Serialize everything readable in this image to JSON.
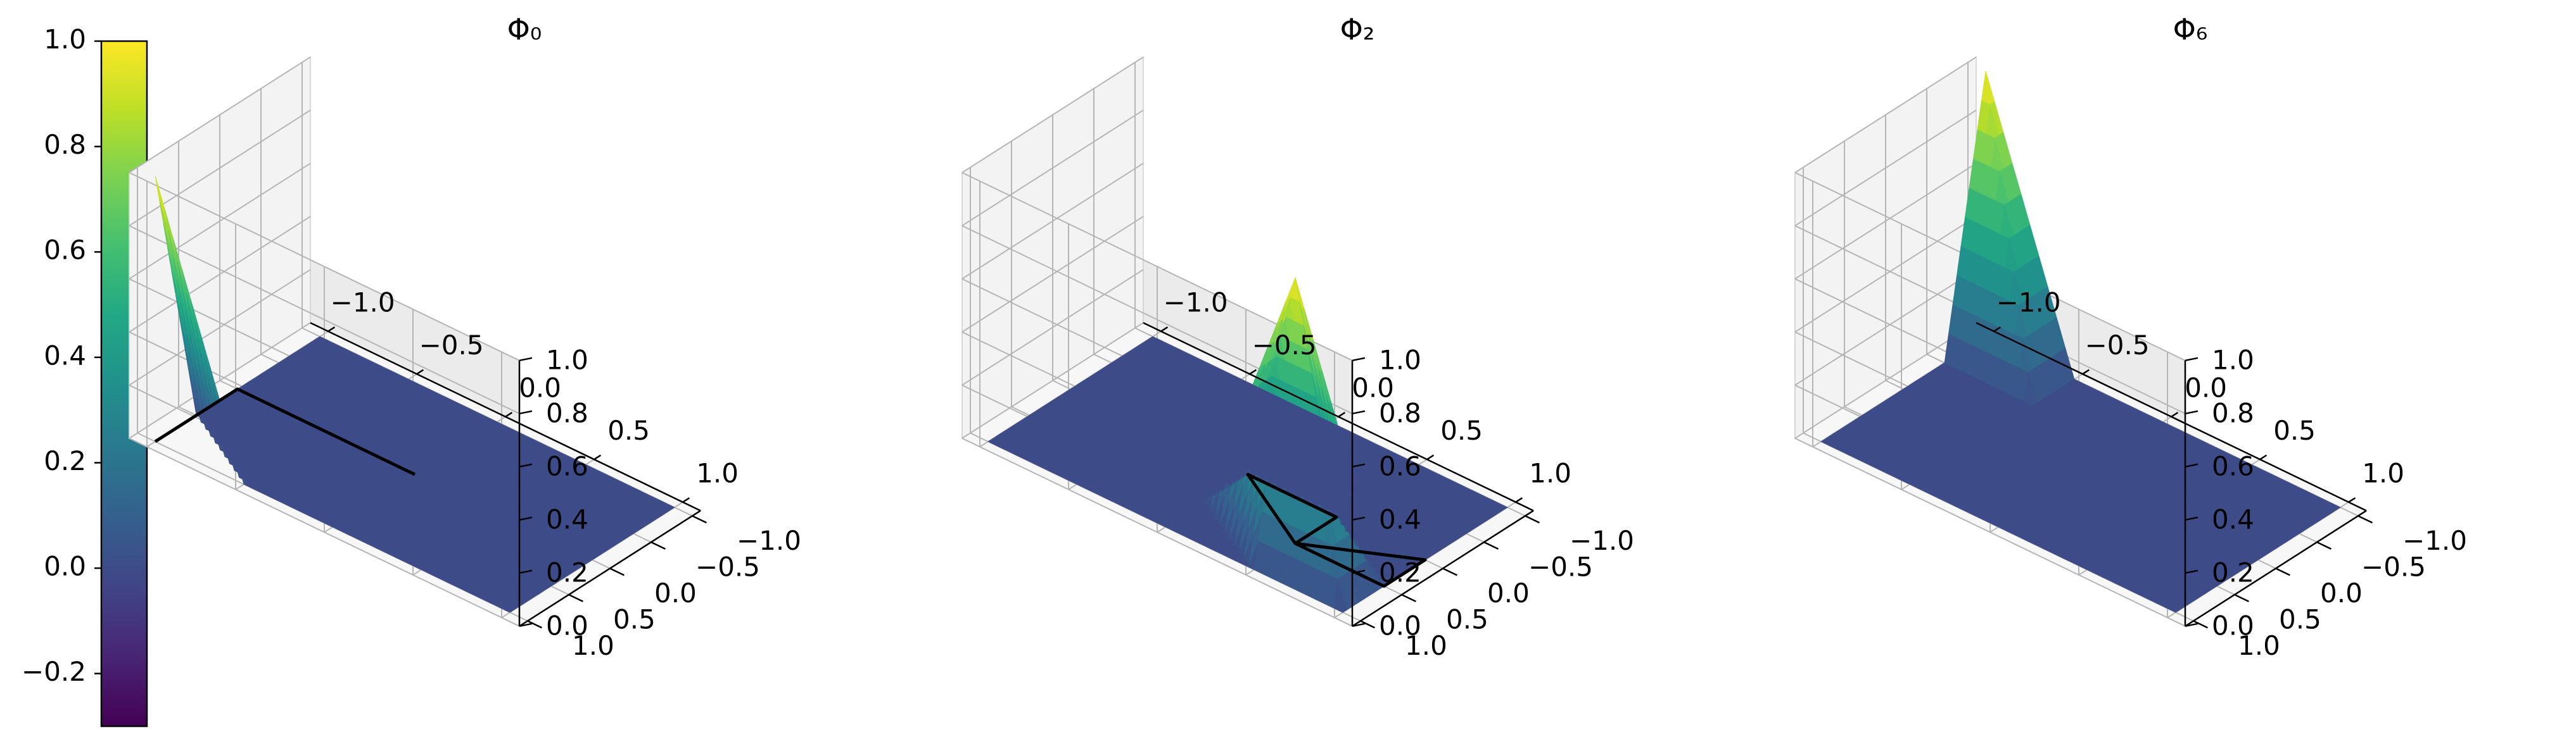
{
  "chart_data": {
    "type": "surface3d",
    "colorbar": {
      "colormap": "viridis",
      "vmin": -0.3,
      "vmax": 1.0,
      "ticks": [
        "1.0",
        "0.8",
        "0.6",
        "0.4",
        "0.2",
        "0.0",
        "−0.2"
      ],
      "tick_values": [
        1.0,
        0.8,
        0.6,
        0.4,
        0.2,
        0.0,
        -0.2
      ]
    },
    "axes": {
      "x_ticks": [
        "−1.0",
        "−0.5",
        "0.0",
        "0.5",
        "1.0"
      ],
      "x_tick_values": [
        -1.0,
        -0.5,
        0.0,
        0.5,
        1.0
      ],
      "y_ticks": [
        "−1.0",
        "−0.5",
        "0.0",
        "0.5",
        "1.0"
      ],
      "y_tick_values": [
        -1.0,
        -0.5,
        0.0,
        0.5,
        1.0
      ],
      "z_ticks": [
        "0.0",
        "0.2",
        "0.4",
        "0.6",
        "0.8",
        "1.0"
      ],
      "z_tick_values": [
        0.0,
        0.2,
        0.4,
        0.6,
        0.8,
        1.0
      ],
      "xlim": [
        -1,
        1
      ],
      "ylim": [
        -1,
        1
      ],
      "zlim": [
        0,
        1
      ],
      "grid": true
    },
    "panels": [
      {
        "title": "Φ₀",
        "node": [
          -1,
          1
        ],
        "peak": 1.0,
        "support_outline": [
          [
            -1,
            1
          ],
          [
            -1,
            0
          ],
          [
            0,
            0
          ]
        ]
      },
      {
        "title": "Φ₂",
        "node": [
          0.5,
          0.5
        ],
        "peak": 1.0,
        "support_outline": [
          [
            0.5,
            0.5
          ],
          [
            0.5,
            0
          ],
          [
            0,
            0
          ],
          [
            0.5,
            0.5
          ],
          [
            1,
            0
          ],
          [
            1,
            0.5
          ],
          [
            0.5,
            0.5
          ]
        ]
      },
      {
        "title": "Φ₆",
        "node": [
          -1,
          -1
        ],
        "peak": 1.0,
        "support_outline": []
      }
    ]
  }
}
